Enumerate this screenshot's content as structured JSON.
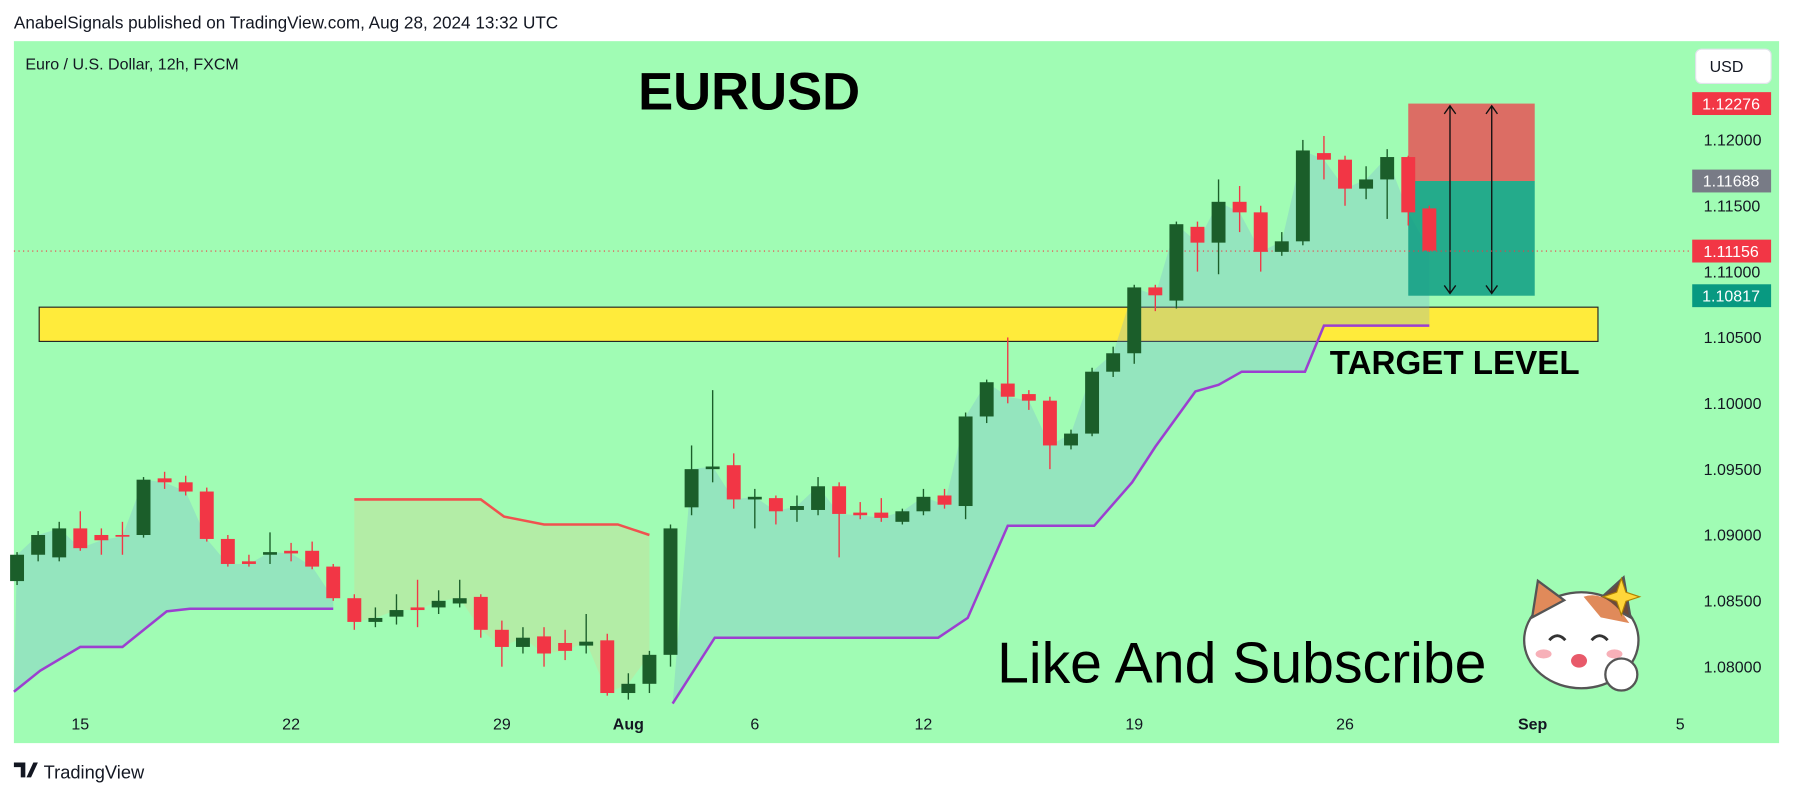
{
  "chart_data": {
    "type": "candlestick",
    "header": "AnabelSignals published on TradingView.com, Aug 28, 2024 13:32 UTC",
    "symbol_label": "Euro / U.S. Dollar, 12h, FXCM",
    "title": "EURUSD",
    "currency": "USD",
    "annotations": [
      "TARGET LEVEL",
      "Like And Subscribe"
    ],
    "footer": "TradingView",
    "colors": {
      "up": "#1b5e2a",
      "down": "#f23645",
      "background": "#a0fcb4"
    },
    "open": [
      1.0865,
      1.0885,
      1.0883,
      1.0905,
      1.09,
      1.09,
      1.09,
      1.0943,
      1.094,
      1.0933,
      1.0897,
      1.088,
      1.0885,
      1.0888,
      1.0888,
      1.0876,
      1.0852,
      1.0834,
      1.0838,
      1.0845,
      1.0845,
      1.0848,
      1.0853,
      1.0828,
      1.0815,
      1.0823,
      1.0818,
      1.0816,
      1.082,
      1.078,
      1.0787,
      1.0809,
      1.0921,
      1.095,
      1.0953,
      1.0927,
      1.0928,
      1.0919,
      1.0919,
      1.0937,
      1.0917,
      1.0917,
      1.091,
      1.0918,
      1.093,
      1.0922,
      1.099,
      1.1015,
      1.1007,
      1.1002,
      1.0968,
      1.0977,
      1.1024,
      1.1038,
      1.1088,
      1.1078,
      1.1134,
      1.1122,
      1.1153,
      1.1145,
      1.1115,
      1.1123,
      1.119,
      1.1185,
      1.1163,
      1.117,
      1.1187,
      1.1148
    ],
    "high": [
      1.0887,
      1.0903,
      1.091,
      1.0918,
      1.0905,
      1.091,
      1.0944,
      1.0948,
      1.0945,
      1.0936,
      1.09,
      1.0885,
      1.0902,
      1.0894,
      1.0895,
      1.0878,
      1.0855,
      1.0845,
      1.0855,
      1.0866,
      1.0858,
      1.0866,
      1.0855,
      1.0835,
      1.083,
      1.083,
      1.0828,
      1.084,
      1.0825,
      1.0795,
      1.0812,
      1.0908,
      1.0968,
      1.101,
      1.0962,
      1.0935,
      1.093,
      1.093,
      1.0944,
      1.094,
      1.0925,
      1.0928,
      1.092,
      1.0935,
      1.0935,
      1.0993,
      1.1018,
      1.105,
      1.101,
      1.1005,
      1.098,
      1.1027,
      1.1043,
      1.109,
      1.109,
      1.1138,
      1.1138,
      1.117,
      1.1165,
      1.115,
      1.113,
      1.12,
      1.1203,
      1.1188,
      1.118,
      1.1193,
      1.1188,
      1.115
    ],
    "low": [
      1.0862,
      1.088,
      1.088,
      1.0888,
      1.0885,
      1.0885,
      1.0898,
      1.0935,
      1.093,
      1.0895,
      1.0876,
      1.0876,
      1.0878,
      1.088,
      1.0874,
      1.085,
      1.0828,
      1.083,
      1.0832,
      1.083,
      1.084,
      1.0845,
      1.0822,
      1.08,
      1.081,
      1.08,
      1.0805,
      1.081,
      1.0778,
      1.0775,
      1.078,
      1.08,
      1.0915,
      1.094,
      1.092,
      1.0905,
      1.0908,
      1.091,
      1.0915,
      1.0883,
      1.0912,
      1.091,
      1.0908,
      1.0915,
      1.092,
      1.0912,
      1.0985,
      1.1,
      1.0995,
      1.095,
      1.0965,
      1.0975,
      1.102,
      1.103,
      1.107,
      1.1072,
      1.11,
      1.1098,
      1.113,
      1.11,
      1.1112,
      1.112,
      1.117,
      1.115,
      1.1155,
      1.114,
      1.1135,
      1.1115
    ],
    "close": [
      1.0885,
      1.09,
      1.0905,
      1.089,
      1.0896,
      1.0899,
      1.0942,
      1.094,
      1.0933,
      1.0897,
      1.0878,
      1.0878,
      1.0887,
      1.0886,
      1.0876,
      1.0852,
      1.0834,
      1.0837,
      1.0843,
      1.0843,
      1.085,
      1.0852,
      1.0828,
      1.0815,
      1.0822,
      1.081,
      1.0812,
      1.0819,
      1.078,
      1.0787,
      1.0809,
      1.0905,
      1.095,
      1.0952,
      1.0927,
      1.0929,
      1.0918,
      1.0922,
      1.0937,
      1.0916,
      1.0915,
      1.0913,
      1.0918,
      1.0929,
      1.0923,
      1.099,
      1.1016,
      1.1005,
      1.1002,
      1.0968,
      1.0977,
      1.1024,
      1.1038,
      1.1088,
      1.1082,
      1.1136,
      1.1122,
      1.1153,
      1.1145,
      1.1115,
      1.1123,
      1.1192,
      1.1185,
      1.1163,
      1.117,
      1.1187,
      1.1145,
      1.1116
    ],
    "xlim": [
      -0.15,
      79.2
    ],
    "ylim": [
      1.0768,
      1.1275
    ],
    "xticks": [
      {
        "value": 3,
        "label": "15"
      },
      {
        "value": 13,
        "label": "22"
      },
      {
        "value": 23,
        "label": "29"
      },
      {
        "value": 29,
        "label": "Aug"
      },
      {
        "value": 35,
        "label": "6"
      },
      {
        "value": 43,
        "label": "12"
      },
      {
        "value": 53,
        "label": "19"
      },
      {
        "value": 63,
        "label": "26"
      },
      {
        "value": 71.9,
        "label": "Sep"
      },
      {
        "value": 78.9,
        "label": "5"
      }
    ],
    "yticks": [
      {
        "value": 1.08,
        "label": "1.08000"
      },
      {
        "value": 1.085,
        "label": "1.08500"
      },
      {
        "value": 1.09,
        "label": "1.09000"
      },
      {
        "value": 1.095,
        "label": "1.09500"
      },
      {
        "value": 1.1,
        "label": "1.10000"
      },
      {
        "value": 1.105,
        "label": "1.10500"
      },
      {
        "value": 1.11,
        "label": "1.11000"
      },
      {
        "value": 1.115,
        "label": "1.11500"
      },
      {
        "value": 1.12,
        "label": "1.12000"
      }
    ],
    "price_labels": [
      {
        "value": 1.12276,
        "color": "#f23645"
      },
      {
        "value": 1.11688,
        "color": "#787b86"
      },
      {
        "value": 1.11156,
        "color": "#f23645"
      },
      {
        "value": 1.10817,
        "color": "#089981"
      }
    ],
    "lines": [
      {
        "color": "#9c3fd0",
        "fill": "rgba(120,170,215,0.28)",
        "x": [
          -0.15,
          1.1,
          3,
          5,
          7.1,
          8.2,
          15,
          null,
          31.1,
          33.1,
          43.7,
          45.1,
          47,
          51.1,
          52.9,
          54,
          55.9,
          57,
          58.1,
          61.1,
          62,
          67
        ],
        "values": [
          1.0781,
          1.0797,
          1.0815,
          1.0815,
          1.0842,
          1.0844,
          1.0844,
          null,
          1.0772,
          1.0822,
          1.0822,
          1.0837,
          1.0907,
          1.0907,
          1.094,
          1.0967,
          1.1009,
          1.1014,
          1.1024,
          1.1024,
          1.1059,
          1.1059
        ]
      },
      {
        "color": "#f0524f",
        "fill": "rgba(215,210,140,0.35)",
        "x": [
          16,
          22,
          23.1,
          25,
          28.5,
          30
        ],
        "values": [
          1.0927,
          1.0927,
          1.0914,
          1.0908,
          1.0908,
          1.09
        ]
      }
    ],
    "zone": {
      "x": [
        1.05,
        75
      ],
      "low": 1.1047,
      "high": 1.1073,
      "color": "#ffeb3b"
    },
    "position": {
      "x": [
        66,
        72
      ]
    }
  }
}
